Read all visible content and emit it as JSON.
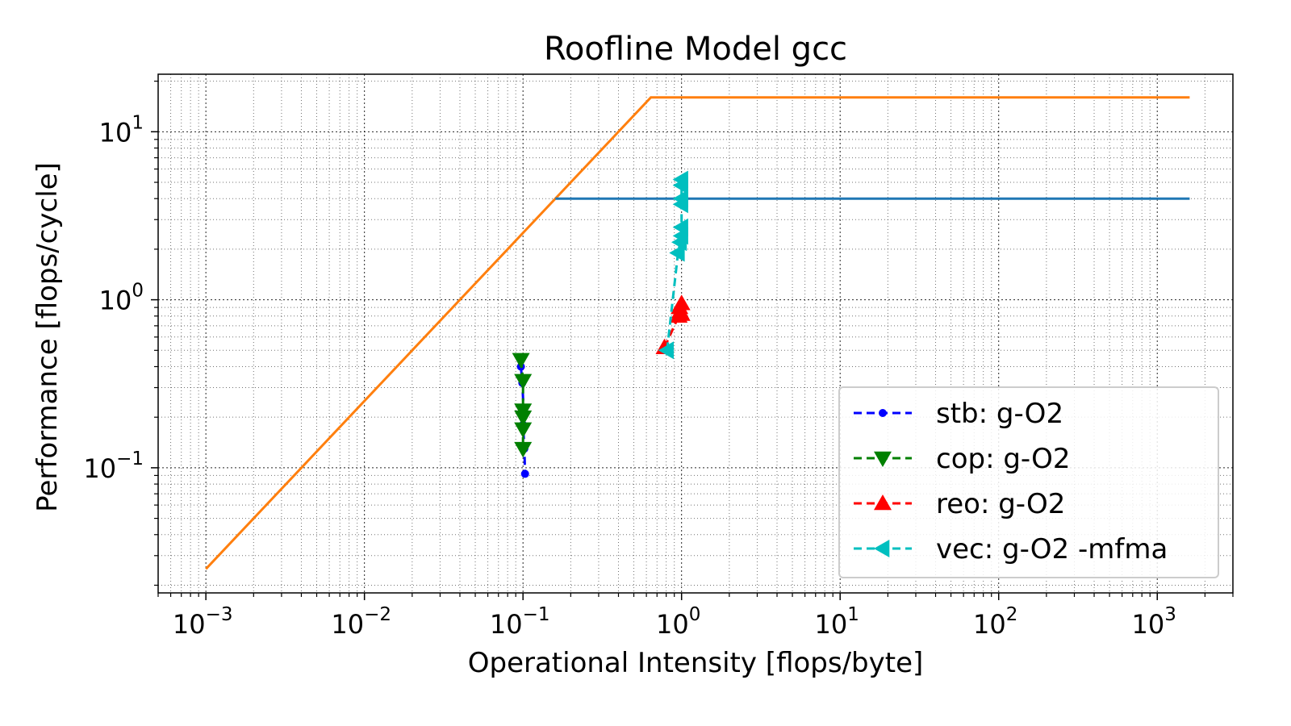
{
  "chart_data": {
    "type": "line",
    "title": "Roofline Model gcc",
    "xlabel": "Operational Intensity [flops/byte]",
    "ylabel": "Performance [flops/cycle]",
    "xscale": "log",
    "yscale": "log",
    "xlim": [
      0.0005,
      3000
    ],
    "ylim": [
      0.018,
      22
    ],
    "grid": "on (major and minor, dotted)",
    "legend_position": "bottom-right",
    "x_ticks": [
      {
        "value": 0.001,
        "base": "10",
        "exp": "−3"
      },
      {
        "value": 0.01,
        "base": "10",
        "exp": "−2"
      },
      {
        "value": 0.1,
        "base": "10",
        "exp": "−1"
      },
      {
        "value": 1,
        "base": "10",
        "exp": "0"
      },
      {
        "value": 10,
        "base": "10",
        "exp": "1"
      },
      {
        "value": 100,
        "base": "10",
        "exp": "2"
      },
      {
        "value": 1000,
        "base": "10",
        "exp": "3"
      }
    ],
    "y_ticks": [
      {
        "value": 0.1,
        "base": "10",
        "exp": "−1"
      },
      {
        "value": 1,
        "base": "10",
        "exp": "0"
      },
      {
        "value": 10,
        "base": "10",
        "exp": "1"
      }
    ],
    "rooflines": [
      {
        "color": "#ff7f0e",
        "x": [
          0.001,
          0.64,
          1600
        ],
        "y": [
          0.025,
          16,
          16
        ]
      },
      {
        "color": "#1f77b4",
        "x": [
          0.16,
          1600
        ],
        "y": [
          4,
          4
        ]
      }
    ],
    "series": [
      {
        "name": "stb:  g-O2",
        "color": "#0000ff",
        "marker": "dot",
        "x": [
          0.097,
          0.099,
          0.101,
          0.1,
          0.102,
          0.103
        ],
        "y": [
          0.4,
          0.32,
          0.22,
          0.18,
          0.13,
          0.092
        ]
      },
      {
        "name": "cop:  g-O2",
        "color": "#008000",
        "marker": "triangle-down",
        "x": [
          0.097,
          0.1,
          0.1,
          0.1,
          0.1,
          0.1
        ],
        "y": [
          0.44,
          0.33,
          0.22,
          0.2,
          0.17,
          0.13
        ]
      },
      {
        "name": "reo:  g-O2",
        "color": "#ff0000",
        "marker": "triangle-up",
        "x": [
          0.78,
          0.96,
          0.98,
          1.0,
          0.97,
          1.0
        ],
        "y": [
          0.52,
          0.8,
          0.85,
          0.95,
          0.9,
          0.82
        ]
      },
      {
        "name": "vec:  g-O2 -mfma",
        "color": "#00bfbf",
        "marker": "triangle-left",
        "x": [
          0.81,
          0.95,
          0.98,
          1.0,
          1.0,
          1.0,
          1.0,
          1.0,
          1.0
        ],
        "y": [
          0.5,
          1.9,
          2.2,
          2.4,
          2.7,
          3.7,
          4.0,
          4.8,
          5.2
        ]
      }
    ]
  }
}
